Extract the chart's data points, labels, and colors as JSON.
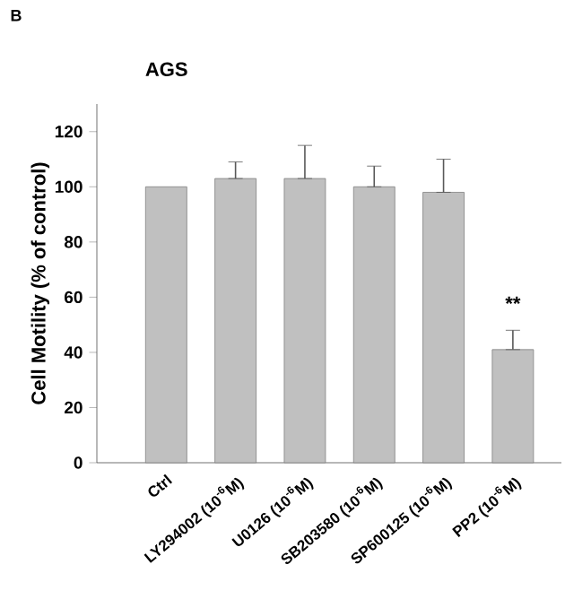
{
  "chart_data": {
    "type": "bar",
    "title": "AGS",
    "categories": [
      "Ctrl",
      "LY294002 (10$^{-6}$M)",
      "U0126 (10$^{-6}$M)",
      "SB203580 (10$^{-6}$M)",
      "SP600125 (10$^{-6}$M)",
      "PP2 (10$^{-6}$M)"
    ],
    "values": [
      100,
      103,
      103,
      100,
      98,
      41
    ],
    "errors": [
      null,
      [
        103,
        109
      ],
      [
        103,
        115
      ],
      [
        100,
        107.5
      ],
      [
        98,
        110
      ],
      [
        41,
        48
      ]
    ],
    "color": "#c0c0c0",
    "ylabel": "Cell Motility (% of control)",
    "ylim": [
      0,
      130
    ],
    "yticks": [
      0,
      20,
      40,
      60,
      80,
      100,
      120
    ],
    "annotations": [
      "B",
      "**"
    ]
  }
}
